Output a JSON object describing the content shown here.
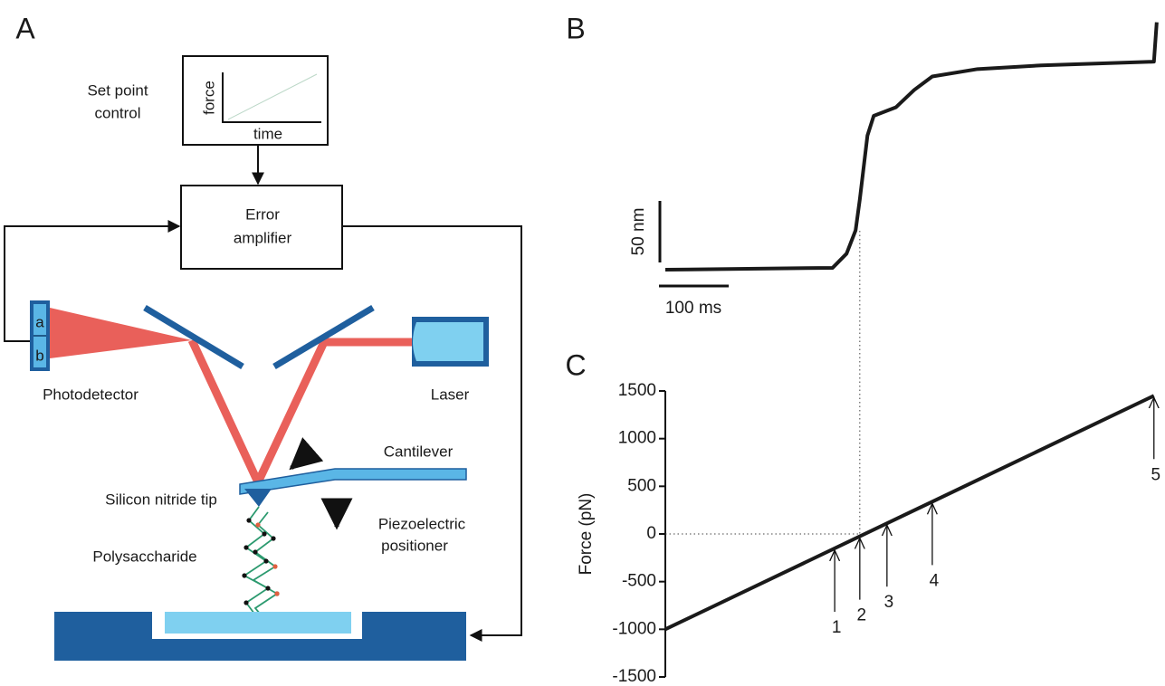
{
  "panel_labels": [
    "A",
    "B",
    "C"
  ],
  "diagram": {
    "set_point_label": [
      "Set point",
      "control"
    ],
    "graph_ylabel": "force",
    "graph_xlabel": "time",
    "error_amplifier": [
      "Error",
      "amplifier"
    ],
    "detector_segments": [
      "a",
      "b"
    ],
    "photodetector": "Photodetector",
    "laser": "Laser",
    "cantilever": "Cantilever",
    "tip": "Silicon nitride tip",
    "polysaccharide": "Polysaccharide",
    "positioner": [
      "Piezoelectric",
      "positioner"
    ]
  },
  "chart_data": [
    {
      "type": "line",
      "color": "#1a1a1a",
      "x": [
        0,
        240,
        260,
        273,
        279,
        290,
        299,
        331,
        357,
        383,
        448,
        539,
        701,
        705
      ],
      "values": [
        0,
        1.5,
        13,
        32,
        57,
        109,
        125,
        132,
        146,
        157,
        163,
        166,
        169,
        201
      ],
      "xlim": [
        0,
        710
      ],
      "scale_bars": [
        {
          "axis": "y",
          "value": 50,
          "label": "50 nm"
        },
        {
          "axis": "x",
          "value": 100,
          "label": "100 ms"
        }
      ]
    },
    {
      "type": "line",
      "color": "#1a1a1a",
      "ylabel": "Force (pN)",
      "x": [
        0,
        701
      ],
      "values": [
        -1000,
        1450
      ],
      "xlim": [
        0,
        710
      ],
      "ylim": [
        -1500,
        1500
      ],
      "yticks": [
        -1500,
        -1000,
        -500,
        0,
        500,
        1000,
        1500
      ],
      "annotations": [
        {
          "text": "1",
          "x": 243,
          "y": -152
        },
        {
          "text": "2",
          "x": 279,
          "y": -25
        },
        {
          "text": "3",
          "x": 318,
          "y": 112
        },
        {
          "text": "4",
          "x": 383,
          "y": 338
        },
        {
          "text": "5",
          "x": 701,
          "y": 1450
        }
      ]
    }
  ]
}
